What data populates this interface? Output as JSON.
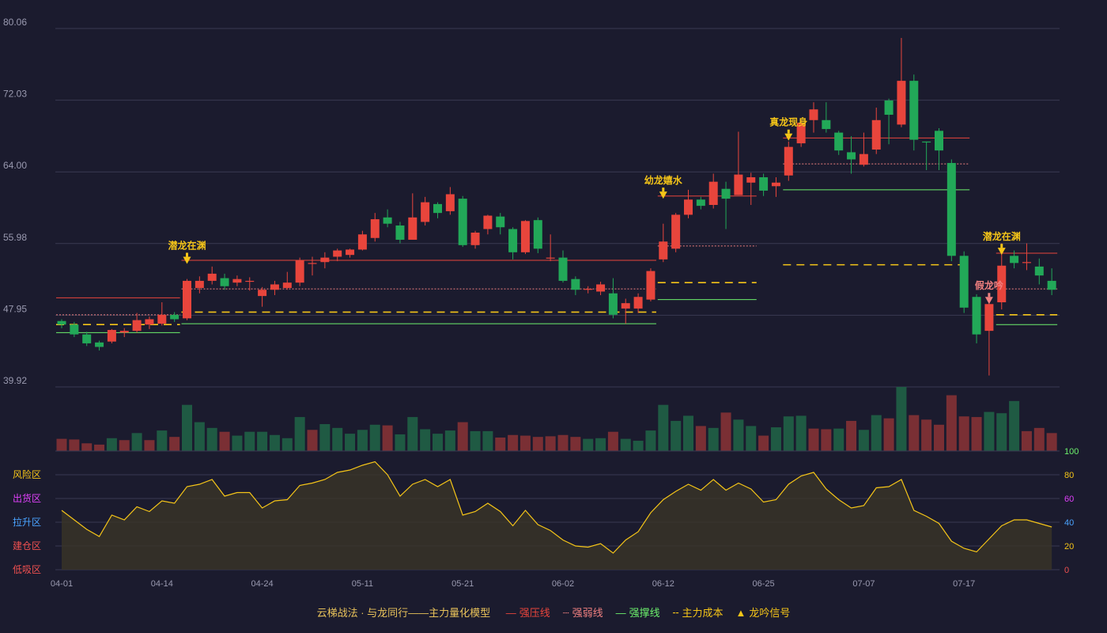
{
  "colors": {
    "background": "#1b1b2e",
    "up": "#e8453c",
    "down": "#22a858",
    "resistance": "#e8453c",
    "weak": "#f08080",
    "support": "#6cf06c",
    "cost": "#f5c518",
    "signal": "#f5c518",
    "oscillator": "#f5c518",
    "grid": "#3a3a52",
    "axis_text": "#9a9ab0"
  },
  "legend": {
    "title": "云梯战法 · 与龙同行——主力量化模型",
    "items": [
      {
        "label": "强压线",
        "color": "#e8453c",
        "icon": "solid-line"
      },
      {
        "label": "强弱线",
        "color": "#f08080",
        "icon": "dotted-line"
      },
      {
        "label": "强撑线",
        "color": "#6cf06c",
        "icon": "solid-line"
      },
      {
        "label": "主力成本",
        "color": "#f5c518",
        "icon": "dashed-line"
      },
      {
        "label": "龙吟信号",
        "color": "#f5c518",
        "icon": "triangle"
      }
    ]
  },
  "chart_data": {
    "type": "candlestick",
    "y_ticks": [
      "80.06",
      "72.03",
      "64.00",
      "55.98",
      "47.95",
      "39.92"
    ],
    "ylim": [
      39.92,
      80.06
    ],
    "x_tick_labels": [
      {
        "label": "04-01",
        "index": 0
      },
      {
        "label": "04-14",
        "index": 8
      },
      {
        "label": "04-24",
        "index": 16
      },
      {
        "label": "05-11",
        "index": 24
      },
      {
        "label": "05-21",
        "index": 32
      },
      {
        "label": "06-02",
        "index": 40
      },
      {
        "label": "06-12",
        "index": 48
      },
      {
        "label": "06-25",
        "index": 56
      },
      {
        "label": "07-07",
        "index": 64
      },
      {
        "label": "07-17",
        "index": 72
      }
    ],
    "candles": [
      [
        47.3,
        46.9,
        47.5,
        46.5
      ],
      [
        46.9,
        45.8,
        47.2,
        45.5
      ],
      [
        45.8,
        44.8,
        46.1,
        44.5
      ],
      [
        44.9,
        44.4,
        45.1,
        44.0
      ],
      [
        45.0,
        46.3,
        46.4,
        44.8
      ],
      [
        46.0,
        46.2,
        46.5,
        45.5
      ],
      [
        46.2,
        47.4,
        48.2,
        46.0
      ],
      [
        46.9,
        47.5,
        47.8,
        46.4
      ],
      [
        47.0,
        48.0,
        49.4,
        46.8
      ],
      [
        48.0,
        47.5,
        48.3,
        47.2
      ],
      [
        47.6,
        51.8,
        52.0,
        47.4
      ],
      [
        51.0,
        51.8,
        52.3,
        50.4
      ],
      [
        51.8,
        52.6,
        53.4,
        51.4
      ],
      [
        52.1,
        51.2,
        52.6,
        50.8
      ],
      [
        51.6,
        52.0,
        52.4,
        51.2
      ],
      [
        51.7,
        51.8,
        52.2,
        50.7
      ],
      [
        50.1,
        50.8,
        51.1,
        48.9
      ],
      [
        50.8,
        51.4,
        51.8,
        50.2
      ],
      [
        51.0,
        51.6,
        52.8,
        50.8
      ],
      [
        51.6,
        54.1,
        54.4,
        51.2
      ],
      [
        53.8,
        53.8,
        54.5,
        52.4
      ],
      [
        53.9,
        54.4,
        55.0,
        53.2
      ],
      [
        54.5,
        55.2,
        55.4,
        54.0
      ],
      [
        54.7,
        55.3,
        55.4,
        54.4
      ],
      [
        55.3,
        57.0,
        57.4,
        55.2
      ],
      [
        56.6,
        58.7,
        59.4,
        56.2
      ],
      [
        58.9,
        58.2,
        59.8,
        57.8
      ],
      [
        58.0,
        56.4,
        58.4,
        56.0
      ],
      [
        56.4,
        58.9,
        61.6,
        56.4
      ],
      [
        58.4,
        60.6,
        61.2,
        58.0
      ],
      [
        60.4,
        59.4,
        60.6,
        58.8
      ],
      [
        59.6,
        61.5,
        62.3,
        59.2
      ],
      [
        61.0,
        55.8,
        61.3,
        55.6
      ],
      [
        55.8,
        57.2,
        57.4,
        55.4
      ],
      [
        57.6,
        59.1,
        59.2,
        57.0
      ],
      [
        59.0,
        57.8,
        59.4,
        57.0
      ],
      [
        57.6,
        55.0,
        57.8,
        54.2
      ],
      [
        55.0,
        58.5,
        58.6,
        54.8
      ],
      [
        58.6,
        55.4,
        58.9,
        54.9
      ],
      [
        54.3,
        54.4,
        57.0,
        54.0
      ],
      [
        54.4,
        51.8,
        55.2,
        51.6
      ],
      [
        52.0,
        50.8,
        52.3,
        50.2
      ],
      [
        50.8,
        50.9,
        51.2,
        50.4
      ],
      [
        50.6,
        51.4,
        51.7,
        50.2
      ],
      [
        50.4,
        48.0,
        52.1,
        47.6
      ],
      [
        48.7,
        49.3,
        49.8,
        47.0
      ],
      [
        48.7,
        50.0,
        50.4,
        48.2
      ],
      [
        49.7,
        52.9,
        53.2,
        49.5
      ],
      [
        54.2,
        56.2,
        58.2,
        53.9
      ],
      [
        55.4,
        59.2,
        59.4,
        55.0
      ],
      [
        59.2,
        60.9,
        62.0,
        58.8
      ],
      [
        60.9,
        60.2,
        61.2,
        59.8
      ],
      [
        60.3,
        62.9,
        63.8,
        59.9
      ],
      [
        62.1,
        61.0,
        62.9,
        57.6
      ],
      [
        61.4,
        63.7,
        68.5,
        61.4
      ],
      [
        62.8,
        63.4,
        63.9,
        60.3
      ],
      [
        63.4,
        61.9,
        63.8,
        61.3
      ],
      [
        62.4,
        62.8,
        63.4,
        61.2
      ],
      [
        63.6,
        66.8,
        67.4,
        63.0
      ],
      [
        67.2,
        69.5,
        69.8,
        66.8
      ],
      [
        69.8,
        71.0,
        71.8,
        68.4
      ],
      [
        69.8,
        68.8,
        71.8,
        68.4
      ],
      [
        68.4,
        66.4,
        68.6,
        65.9
      ],
      [
        66.2,
        65.4,
        68.0,
        63.8
      ],
      [
        64.8,
        66.0,
        68.4,
        64.6
      ],
      [
        66.5,
        69.8,
        71.2,
        66.0
      ],
      [
        72.0,
        70.4,
        72.2,
        67.1
      ],
      [
        69.3,
        74.2,
        79.0,
        69.0
      ],
      [
        74.2,
        67.6,
        74.9,
        66.4
      ],
      [
        67.4,
        67.3,
        67.4,
        64.2
      ],
      [
        68.6,
        66.4,
        68.9,
        64.2
      ],
      [
        65.0,
        54.6,
        65.4,
        54.0
      ],
      [
        54.6,
        48.8,
        55.1,
        48.2
      ],
      [
        50.0,
        45.8,
        50.3,
        44.8
      ],
      [
        46.2,
        49.2,
        49.4,
        41.2
      ],
      [
        49.4,
        53.5,
        56.0,
        48.6
      ],
      [
        54.6,
        53.8,
        55.2,
        53.2
      ],
      [
        53.9,
        53.9,
        56.0,
        53.0
      ],
      [
        53.4,
        52.4,
        54.3,
        51.4
      ],
      [
        51.8,
        50.8,
        53.2,
        50.2
      ]
    ],
    "volume": [
      [
        0.19,
        "up"
      ],
      [
        0.18,
        "up"
      ],
      [
        0.12,
        "up"
      ],
      [
        0.1,
        "up"
      ],
      [
        0.2,
        "down"
      ],
      [
        0.17,
        "up"
      ],
      [
        0.28,
        "down"
      ],
      [
        0.17,
        "up"
      ],
      [
        0.32,
        "down"
      ],
      [
        0.22,
        "up"
      ],
      [
        0.72,
        "down"
      ],
      [
        0.45,
        "down"
      ],
      [
        0.36,
        "down"
      ],
      [
        0.3,
        "up"
      ],
      [
        0.24,
        "down"
      ],
      [
        0.3,
        "down"
      ],
      [
        0.3,
        "down"
      ],
      [
        0.25,
        "down"
      ],
      [
        0.2,
        "down"
      ],
      [
        0.53,
        "down"
      ],
      [
        0.33,
        "up"
      ],
      [
        0.42,
        "down"
      ],
      [
        0.36,
        "down"
      ],
      [
        0.27,
        "down"
      ],
      [
        0.33,
        "down"
      ],
      [
        0.41,
        "down"
      ],
      [
        0.4,
        "up"
      ],
      [
        0.26,
        "down"
      ],
      [
        0.53,
        "down"
      ],
      [
        0.34,
        "down"
      ],
      [
        0.27,
        "down"
      ],
      [
        0.32,
        "down"
      ],
      [
        0.45,
        "up"
      ],
      [
        0.31,
        "down"
      ],
      [
        0.31,
        "down"
      ],
      [
        0.21,
        "up"
      ],
      [
        0.25,
        "up"
      ],
      [
        0.24,
        "up"
      ],
      [
        0.22,
        "up"
      ],
      [
        0.23,
        "up"
      ],
      [
        0.25,
        "up"
      ],
      [
        0.22,
        "up"
      ],
      [
        0.19,
        "down"
      ],
      [
        0.2,
        "down"
      ],
      [
        0.3,
        "up"
      ],
      [
        0.19,
        "down"
      ],
      [
        0.16,
        "down"
      ],
      [
        0.32,
        "down"
      ],
      [
        0.72,
        "down"
      ],
      [
        0.47,
        "down"
      ],
      [
        0.55,
        "down"
      ],
      [
        0.39,
        "up"
      ],
      [
        0.36,
        "down"
      ],
      [
        0.6,
        "up"
      ],
      [
        0.49,
        "down"
      ],
      [
        0.39,
        "down"
      ],
      [
        0.24,
        "up"
      ],
      [
        0.37,
        "down"
      ],
      [
        0.54,
        "down"
      ],
      [
        0.55,
        "down"
      ],
      [
        0.35,
        "up"
      ],
      [
        0.34,
        "up"
      ],
      [
        0.35,
        "down"
      ],
      [
        0.47,
        "up"
      ],
      [
        0.33,
        "down"
      ],
      [
        0.56,
        "down"
      ],
      [
        0.51,
        "up"
      ],
      [
        1.0,
        "down"
      ],
      [
        0.56,
        "up"
      ],
      [
        0.49,
        "up"
      ],
      [
        0.41,
        "up"
      ],
      [
        0.87,
        "up"
      ],
      [
        0.54,
        "up"
      ],
      [
        0.53,
        "up"
      ],
      [
        0.61,
        "down"
      ],
      [
        0.59,
        "down"
      ],
      [
        0.78,
        "down"
      ],
      [
        0.31,
        "up"
      ],
      [
        0.36,
        "up"
      ],
      [
        0.28,
        "up"
      ]
    ],
    "oscillator": {
      "y_ticks": [
        "100",
        "80",
        "60",
        "40",
        "20",
        "0"
      ],
      "zones": [
        "风险区",
        "出货区",
        "拉升区",
        "建仓区",
        "低吸区"
      ],
      "zone_colors": [
        "#f5c518",
        "#e040fb",
        "#4aa3ff",
        "#f05050",
        "#f05050"
      ],
      "tick_colors": [
        "#6cf06c",
        "#f5c518",
        "#e040fb",
        "#4aa3ff",
        "#f5c518",
        "#f05050"
      ],
      "values": [
        50,
        42,
        34,
        28,
        46,
        42,
        53,
        49,
        58,
        56,
        70,
        72,
        76,
        62,
        65,
        65,
        52,
        58,
        59,
        71,
        73,
        76,
        82,
        84,
        88,
        91,
        80,
        62,
        72,
        76,
        70,
        76,
        46,
        49,
        56,
        49,
        37,
        50,
        38,
        33,
        25,
        20,
        19,
        22,
        14,
        25,
        32,
        48,
        59,
        66,
        72,
        67,
        76,
        67,
        73,
        68,
        57,
        59,
        72,
        79,
        82,
        68,
        59,
        52,
        54,
        69,
        70,
        76,
        50,
        45,
        39,
        24,
        18,
        15,
        26,
        37,
        42,
        42,
        39,
        36
      ]
    },
    "levels": [
      {
        "kind": "resistance",
        "y": 49.9,
        "from": 0,
        "to": 9
      },
      {
        "kind": "weak",
        "y": 48.0,
        "from": 0,
        "to": 9
      },
      {
        "kind": "cost",
        "y": 46.9,
        "from": 0,
        "to": 9
      },
      {
        "kind": "support",
        "y": 46.0,
        "from": 0,
        "to": 9
      },
      {
        "kind": "resistance",
        "y": 54.1,
        "from": 10,
        "to": 47
      },
      {
        "kind": "weak",
        "y": 50.9,
        "from": 10,
        "to": 47
      },
      {
        "kind": "cost",
        "y": 48.3,
        "from": 10,
        "to": 47
      },
      {
        "kind": "support",
        "y": 47.0,
        "from": 10,
        "to": 47
      },
      {
        "kind": "resistance",
        "y": 61.3,
        "from": 48,
        "to": 55
      },
      {
        "kind": "weak",
        "y": 55.7,
        "from": 48,
        "to": 55
      },
      {
        "kind": "cost",
        "y": 51.6,
        "from": 48,
        "to": 55
      },
      {
        "kind": "support",
        "y": 49.7,
        "from": 48,
        "to": 55
      },
      {
        "kind": "resistance",
        "y": 67.8,
        "from": 58,
        "to": 72
      },
      {
        "kind": "weak",
        "y": 64.9,
        "from": 58,
        "to": 72
      },
      {
        "kind": "cost",
        "y": 53.6,
        "from": 58,
        "to": 72
      },
      {
        "kind": "support",
        "y": 62.0,
        "from": 58,
        "to": 72
      },
      {
        "kind": "resistance",
        "y": 54.9,
        "from": 75,
        "to": 79
      },
      {
        "kind": "weak",
        "y": 50.9,
        "from": 75,
        "to": 79
      },
      {
        "kind": "cost",
        "y": 48.0,
        "from": 75,
        "to": 79
      },
      {
        "kind": "support",
        "y": 46.9,
        "from": 75,
        "to": 79
      }
    ],
    "signals": [
      {
        "label": "潜龙在渊",
        "index": 10,
        "y": 54.5,
        "color": "#f5c518"
      },
      {
        "label": "幼龙嬉水",
        "index": 48,
        "y": 61.8,
        "color": "#f5c518"
      },
      {
        "label": "真龙现身",
        "index": 58,
        "y": 68.3,
        "color": "#f5c518"
      },
      {
        "label": "潜龙在渊",
        "index": 75,
        "y": 55.5,
        "color": "#f5c518"
      },
      {
        "label": "假龙吟",
        "index": 74,
        "y": 50.0,
        "color": "#f08080"
      }
    ]
  }
}
